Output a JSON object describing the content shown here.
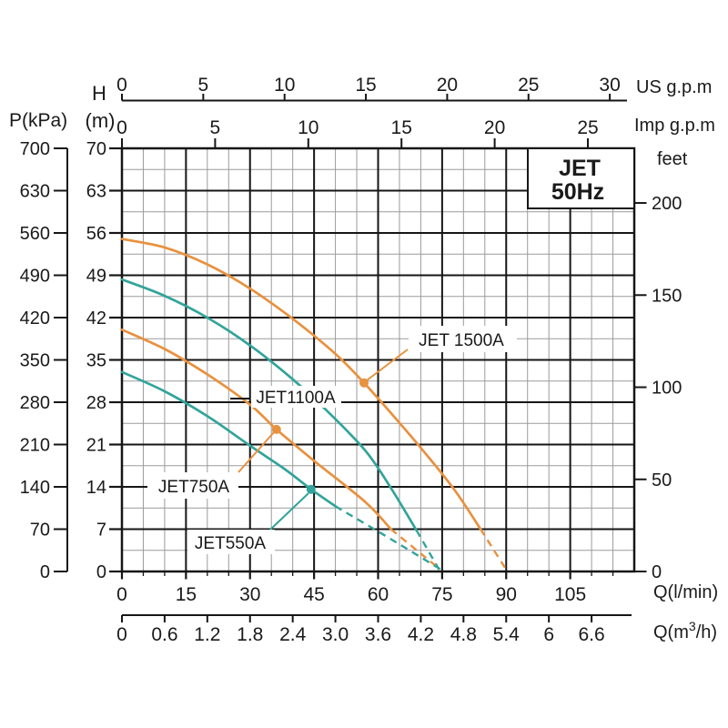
{
  "title": {
    "line1": "JET",
    "line2": "50Hz"
  },
  "axes": {
    "us_gpm": {
      "name": "US g.p.m",
      "ticks": [
        0,
        5,
        10,
        15,
        20,
        25,
        30
      ]
    },
    "imp_gpm": {
      "name": "Imp g.p.m",
      "ticks": [
        0,
        5,
        10,
        15,
        20,
        25
      ]
    },
    "pressure_kpa": {
      "name": "P(kPa)",
      "ticks": [
        700,
        630,
        560,
        490,
        420,
        350,
        280,
        210,
        140,
        70,
        0
      ]
    },
    "head_m": {
      "letter": "H",
      "unit": "(m)",
      "ticks": [
        70,
        63,
        56,
        49,
        42,
        35,
        28,
        21,
        14,
        7,
        0
      ]
    },
    "feet": {
      "name": "feet",
      "ticks": [
        200,
        150,
        100,
        50,
        0
      ]
    },
    "q_lmin": {
      "name": "Q(l/min)",
      "ticks": [
        0,
        15,
        30,
        45,
        60,
        75,
        90,
        105
      ]
    },
    "q_m3h": {
      "name_pre": "Q(m",
      "name_sup": "3",
      "name_post": "/h)",
      "ticks": [
        "0",
        "0.6",
        "1.2",
        "1.8",
        "2.4",
        "3.0",
        "3.6",
        "4.2",
        "4.8",
        "5.4",
        "6",
        "6.6"
      ]
    }
  },
  "chart_data": {
    "type": "line",
    "title": "JET 50Hz pump performance curves",
    "x_axis": {
      "label": "Q (l/min)",
      "range": [
        0,
        120
      ],
      "major_grid_step": 15,
      "minor_grid_step": 5
    },
    "y_axis": {
      "label": "H (m)",
      "range": [
        0,
        70
      ],
      "major_grid_step": 7,
      "minor_grid_step": 3.5
    },
    "colors": {
      "orange": "#E8913E",
      "teal": "#32A49A",
      "grid_major": "#161616",
      "grid_minor": "#9B9B9B",
      "text": "#1a1a1a"
    },
    "series": [
      {
        "name": "JET 1500A",
        "color": "#E8913E",
        "solid_points": [
          [
            0,
            55
          ],
          [
            10,
            53.6
          ],
          [
            20,
            50.8
          ],
          [
            30,
            46.8
          ],
          [
            40,
            41.8
          ],
          [
            50,
            36
          ],
          [
            56.7,
            31.2
          ],
          [
            64,
            25.4
          ],
          [
            71,
            19.6
          ],
          [
            78,
            13.4
          ],
          [
            84,
            7
          ]
        ],
        "dashed_points": [
          [
            84,
            7
          ],
          [
            90,
            0.3
          ]
        ],
        "marker": [
          56.7,
          31.2
        ]
      },
      {
        "name": "JET1100A",
        "color": "#32A49A",
        "solid_points": [
          [
            0,
            48.3
          ],
          [
            10,
            45.6
          ],
          [
            20,
            42
          ],
          [
            30,
            37.4
          ],
          [
            40,
            31.8
          ],
          [
            48,
            26.6
          ],
          [
            57,
            20
          ],
          [
            63,
            13.8
          ],
          [
            69,
            6.8
          ]
        ],
        "dashed_points": [
          [
            69,
            6.8
          ],
          [
            74.3,
            0.3
          ]
        ],
        "marker": null
      },
      {
        "name": "JET750A",
        "color": "#E8913E",
        "solid_points": [
          [
            0,
            40
          ],
          [
            10,
            36.8
          ],
          [
            20,
            32.6
          ],
          [
            30,
            27.6
          ],
          [
            36.2,
            23.5
          ],
          [
            45,
            18.3
          ],
          [
            57,
            11.5
          ],
          [
            63,
            7
          ]
        ],
        "dashed_points": [
          [
            63,
            7
          ],
          [
            74.6,
            0.3
          ]
        ],
        "marker": [
          36.2,
          23.5
        ]
      },
      {
        "name": "JET550A",
        "color": "#32A49A",
        "solid_points": [
          [
            0,
            33
          ],
          [
            10,
            29.8
          ],
          [
            20,
            25.7
          ],
          [
            30,
            20.8
          ],
          [
            38,
            17
          ],
          [
            44.3,
            13.6
          ],
          [
            50,
            10.8
          ]
        ],
        "dashed_points": [
          [
            50,
            10.8
          ],
          [
            61,
            6.2
          ],
          [
            75,
            0.2
          ]
        ],
        "marker": [
          44.3,
          13.6
        ]
      }
    ]
  }
}
